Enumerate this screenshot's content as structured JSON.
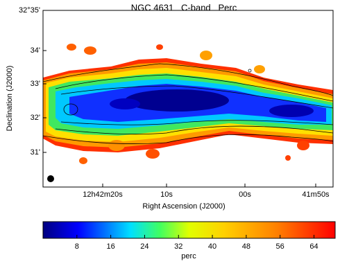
{
  "chart_data": {
    "type": "image",
    "title": "NGC 4631   C-band   Perc",
    "xlabel": "Right Ascension (J2000)",
    "ylabel": "Declination (J2000)",
    "xtick_labels": [
      "12h42m20s",
      "10s",
      "00s",
      "41m50s"
    ],
    "ytick_labels": [
      "32°35'",
      "34'",
      "33'",
      "32'",
      "31'"
    ],
    "colorbar": {
      "label": "perc",
      "lim": [
        0,
        69
      ],
      "ticks": [
        8,
        16,
        24,
        32,
        40,
        48,
        56,
        64
      ]
    }
  }
}
